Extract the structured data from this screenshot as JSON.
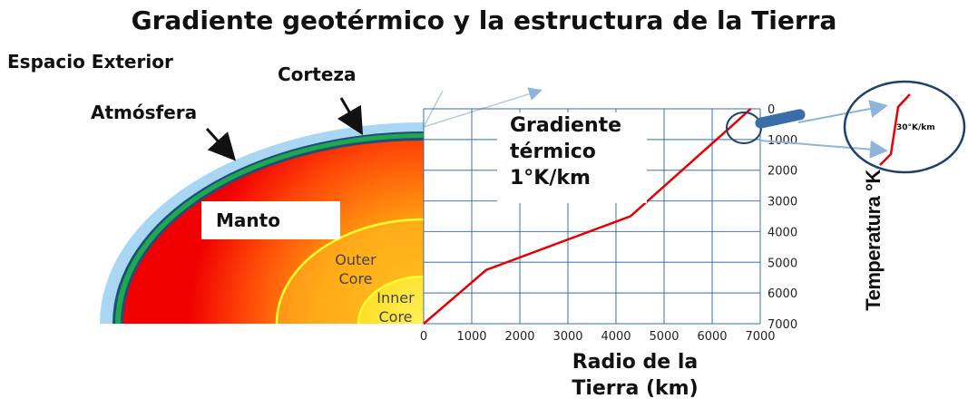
{
  "title": "Gradiente geotérmico y la estructura de la Tierra",
  "labels": {
    "espacio_exterior": "Espacio Exterior",
    "corteza": "Corteza",
    "atmosfera": "Atmósfera",
    "manto": "Manto",
    "outer_core_1": "Outer",
    "outer_core_2": "Core",
    "inner_core_1": "Inner",
    "inner_core_2": "Core",
    "gradiente_1": "Gradiente",
    "gradiente_2": "térmico",
    "gradiente_3": "1°K/km",
    "zoom_label": "30°K/km",
    "xlabel_1": "Radio de la",
    "xlabel_2": "Tierra (km)",
    "ylabel": "Temperatura °K"
  },
  "colors": {
    "atmosphere": "#a9d6f2",
    "crust_dark": "#1f4e79",
    "crust_green": "#1fa84f",
    "mantle_red": "#f00000",
    "core_yellow": "#ffe000",
    "grid_blue": "#2e64a8",
    "curve_red": "#e60000"
  },
  "chart_data": {
    "type": "line",
    "x": [
      0,
      1300,
      4300,
      6450,
      6800
    ],
    "y": [
      7000,
      5250,
      3500,
      500,
      0
    ],
    "xlabel": "Radio de la Tierra (km)",
    "ylabel": "Temperatura °K",
    "xlim": [
      0,
      7000
    ],
    "ylim": [
      7000,
      0
    ],
    "x_ticks": [
      "0",
      "1000",
      "2000",
      "3000",
      "4000",
      "5000",
      "6000",
      "7000"
    ],
    "y_ticks": [
      "0",
      "1000",
      "2000",
      "3000",
      "4000",
      "5000",
      "6000",
      "7000"
    ],
    "grid": true
  }
}
